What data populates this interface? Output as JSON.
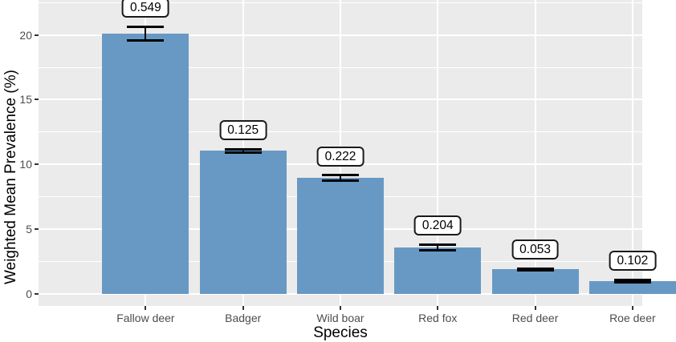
{
  "chart": {
    "y_axis_title": "Weighted Mean Prevalence (%)",
    "x_axis_title": "Species",
    "y_tick_labels": [
      "0",
      "5",
      "10",
      "15",
      "20"
    ],
    "colors": {
      "bar_fill": "#6899c4",
      "panel_background": "#ebebeb",
      "gridline": "#ffffff",
      "tick_text": "#4d4d4d",
      "axis_title_text": "#000000",
      "error_bar": "#000000",
      "label_box_background": "#ffffff",
      "label_box_border": "#1a1a1a"
    }
  },
  "chart_data": {
    "type": "bar",
    "title": "",
    "xlabel": "Species",
    "ylabel": "Weighted Mean Prevalence (%)",
    "categories": [
      "Fallow deer",
      "Badger",
      "Wild boar",
      "Red fox",
      "Red deer",
      "Roe deer"
    ],
    "values": [
      20.1,
      11.05,
      8.95,
      3.6,
      1.9,
      1.0
    ],
    "error_se": [
      0.549,
      0.125,
      0.222,
      0.204,
      0.053,
      0.102
    ],
    "bar_labels": [
      "0.549",
      "0.125",
      "0.222",
      "0.204",
      "0.053",
      "0.102"
    ],
    "y_ticks": [
      0,
      5,
      10,
      15,
      20
    ],
    "y_minor_ticks": [
      2.5,
      7.5,
      12.5,
      17.5,
      22.5
    ],
    "ylim": [
      -1,
      22.7
    ],
    "grid": true,
    "legend": false
  }
}
